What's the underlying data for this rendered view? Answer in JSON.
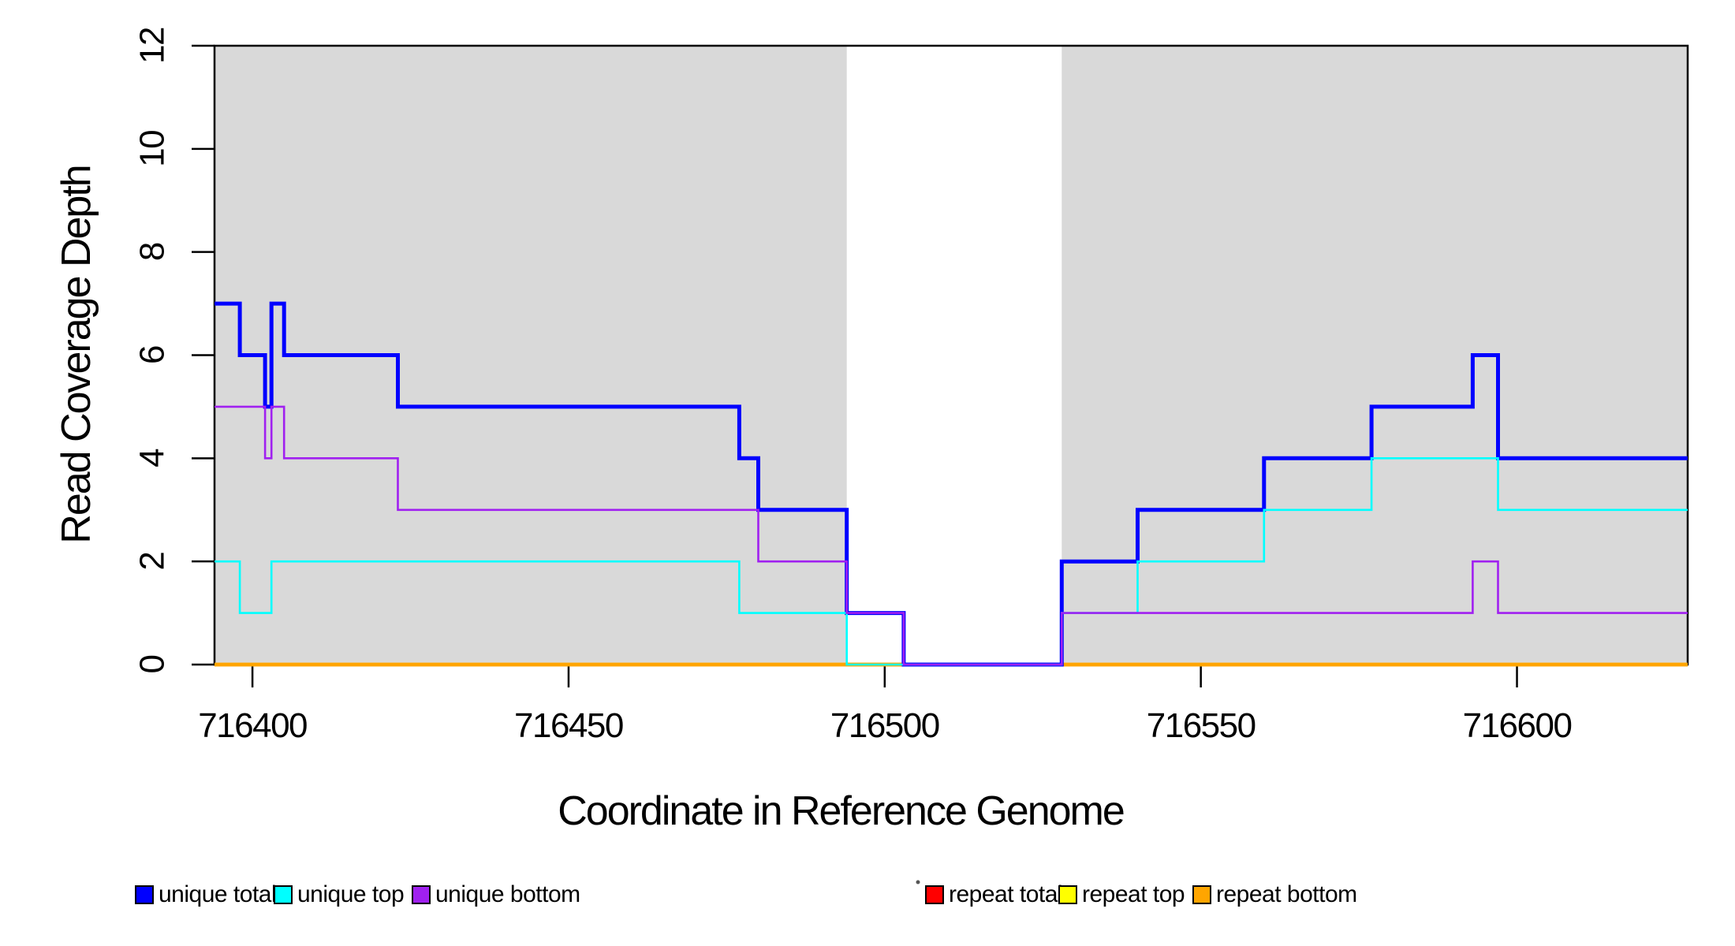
{
  "chart_data": {
    "type": "line",
    "subtype": "step",
    "title": "",
    "xlabel": "Coordinate in Reference Genome",
    "ylabel": "Read Coverage Depth",
    "xlim": [
      716394,
      716627
    ],
    "ylim": [
      0,
      12
    ],
    "x_ticks": [
      716400,
      716450,
      716500,
      716550,
      716600
    ],
    "y_ticks": [
      0,
      2,
      4,
      6,
      8,
      10,
      12
    ],
    "grid": false,
    "legend_position": "bottom",
    "background_color": "#ffffff",
    "shaded_region_color": "#d9d9d9",
    "background_regions": [
      {
        "name": "left-shaded-region",
        "x_start": 716394,
        "x_end": 716494
      },
      {
        "name": "right-shaded-region",
        "x_start": 716528,
        "x_end": 716627
      }
    ],
    "series": [
      {
        "name": "repeat total",
        "color": "#ff0000",
        "width": 4.5,
        "points": [
          [
            716394,
            0
          ],
          [
            716627,
            0
          ]
        ]
      },
      {
        "name": "repeat top",
        "color": "#ffff00",
        "width": 4.5,
        "points": [
          [
            716394,
            0
          ],
          [
            716627,
            0
          ]
        ]
      },
      {
        "name": "repeat bottom",
        "color": "#ffa500",
        "width": 4.5,
        "points": [
          [
            716394,
            0
          ],
          [
            716627,
            0
          ]
        ]
      },
      {
        "name": "unique total",
        "color": "#0000ff",
        "width": 5,
        "points": [
          [
            716394,
            7
          ],
          [
            716398,
            6
          ],
          [
            716402,
            5
          ],
          [
            716403,
            7
          ],
          [
            716405,
            6
          ],
          [
            716423,
            5
          ],
          [
            716477,
            4
          ],
          [
            716480,
            3
          ],
          [
            716494,
            1
          ],
          [
            716503,
            0
          ],
          [
            716528,
            2
          ],
          [
            716540,
            3
          ],
          [
            716560,
            4
          ],
          [
            716577,
            5
          ],
          [
            716593,
            6
          ],
          [
            716597,
            4
          ],
          [
            716627,
            4
          ]
        ]
      },
      {
        "name": "unique top",
        "color": "#00ffff",
        "width": 2.6,
        "points": [
          [
            716394,
            2
          ],
          [
            716398,
            1
          ],
          [
            716403,
            2
          ],
          [
            716477,
            1
          ],
          [
            716494,
            0
          ],
          [
            716528,
            1
          ],
          [
            716540,
            2
          ],
          [
            716560,
            3
          ],
          [
            716577,
            4
          ],
          [
            716597,
            3
          ],
          [
            716627,
            3
          ]
        ]
      },
      {
        "name": "unique bottom",
        "color": "#a020f0",
        "width": 2.6,
        "points": [
          [
            716394,
            5
          ],
          [
            716402,
            4
          ],
          [
            716403,
            5
          ],
          [
            716405,
            4
          ],
          [
            716423,
            3
          ],
          [
            716480,
            2
          ],
          [
            716494,
            1
          ],
          [
            716503,
            0
          ],
          [
            716528,
            1
          ],
          [
            716593,
            2
          ],
          [
            716597,
            1
          ],
          [
            716627,
            1
          ]
        ]
      }
    ],
    "legend": [
      {
        "label": "unique total",
        "color": "#0000ff"
      },
      {
        "label": "unique top",
        "color": "#00ffff"
      },
      {
        "label": "unique bottom",
        "color": "#a020f0"
      },
      {
        "label": "repeat total",
        "color": "#ff0000"
      },
      {
        "label": "repeat top",
        "color": "#ffff00"
      },
      {
        "label": "repeat bottom",
        "color": "#ffa500"
      }
    ]
  }
}
